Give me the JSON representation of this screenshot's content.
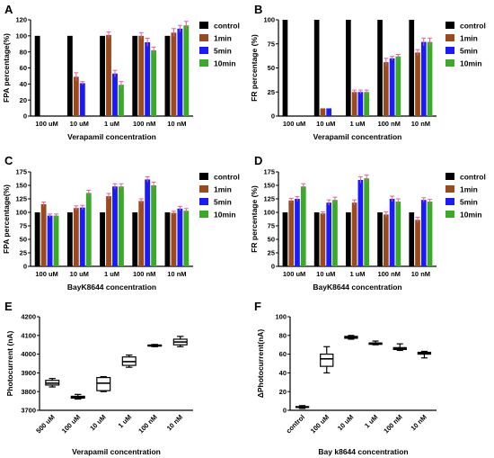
{
  "colors": {
    "control": "#000000",
    "1min": "#9a4a1c",
    "5min": "#1a1aff",
    "10min": "#3aaa28",
    "error": "#e060a0"
  },
  "chart_data": [
    {
      "panel": "A",
      "type": "bar",
      "categories": [
        "100 uM",
        "10 uM",
        "1 uM",
        "100 nM",
        "10 nM"
      ],
      "series": [
        {
          "name": "control",
          "values": [
            100,
            100,
            100,
            100,
            100
          ],
          "err": [
            0,
            0,
            0,
            0,
            0
          ]
        },
        {
          "name": "1min",
          "values": [
            0,
            49,
            101,
            100,
            104
          ],
          "err": [
            0,
            5,
            4,
            4,
            5
          ]
        },
        {
          "name": "5min",
          "values": [
            0,
            41,
            53,
            92,
            109
          ],
          "err": [
            0,
            2,
            4,
            5,
            4
          ]
        },
        {
          "name": "10min",
          "values": [
            0,
            0,
            39,
            82,
            113
          ],
          "err": [
            0,
            0,
            4,
            4,
            5
          ]
        }
      ],
      "xlabel": "Verapamil concentration",
      "ylabel": "FPA percentage(%)",
      "ylim": [
        0,
        120
      ],
      "yticks": [
        0,
        20,
        40,
        60,
        80,
        100,
        120
      ],
      "legend": "right"
    },
    {
      "panel": "B",
      "type": "bar",
      "categories": [
        "100 uM",
        "10 uM",
        "1 uM",
        "100 nM",
        "10 nM"
      ],
      "series": [
        {
          "name": "control",
          "values": [
            100,
            100,
            100,
            100,
            100
          ],
          "err": [
            0,
            0,
            0,
            0,
            0
          ]
        },
        {
          "name": "1min",
          "values": [
            0,
            8,
            25,
            56,
            66
          ],
          "err": [
            0,
            0,
            2,
            4,
            3
          ]
        },
        {
          "name": "5min",
          "values": [
            0,
            8,
            25,
            60,
            77
          ],
          "err": [
            0,
            0,
            2,
            2,
            4
          ]
        },
        {
          "name": "10min",
          "values": [
            0,
            0,
            25,
            62,
            77
          ],
          "err": [
            0,
            0,
            2,
            2,
            4
          ]
        }
      ],
      "xlabel": "Verapamil concentration",
      "ylabel": "FR percentage (%)",
      "ylim": [
        0,
        100
      ],
      "yticks": [
        0,
        25,
        50,
        75,
        100
      ],
      "legend": "right"
    },
    {
      "panel": "C",
      "type": "bar",
      "categories": [
        "100 uM",
        "10 uM",
        "1 uM",
        "100 nM",
        "10 nM"
      ],
      "series": [
        {
          "name": "control",
          "values": [
            100,
            100,
            100,
            100,
            100
          ],
          "err": [
            0,
            0,
            0,
            0,
            0
          ]
        },
        {
          "name": "1min",
          "values": [
            115,
            108,
            130,
            121,
            99
          ],
          "err": [
            4,
            4,
            5,
            4,
            3
          ]
        },
        {
          "name": "5min",
          "values": [
            94,
            109,
            148,
            161,
            107
          ],
          "err": [
            3,
            4,
            5,
            5,
            4
          ]
        },
        {
          "name": "10min",
          "values": [
            94,
            136,
            148,
            150,
            103
          ],
          "err": [
            3,
            5,
            5,
            6,
            4
          ]
        }
      ],
      "xlabel": "BayK8644 concentration",
      "ylabel": "FPA percentage(%)",
      "ylim": [
        0,
        175
      ],
      "yticks": [
        0,
        25,
        50,
        75,
        100,
        125,
        150,
        175
      ],
      "legend": "right"
    },
    {
      "panel": "D",
      "type": "bar",
      "categories": [
        "100 uM",
        "10 uM",
        "1 uM",
        "100 nM",
        "10 nM"
      ],
      "series": [
        {
          "name": "control",
          "values": [
            100,
            100,
            100,
            100,
            100
          ],
          "err": [
            0,
            0,
            0,
            0,
            0
          ]
        },
        {
          "name": "1min",
          "values": [
            122,
            98,
            118,
            96,
            86
          ],
          "err": [
            4,
            3,
            5,
            5,
            5
          ]
        },
        {
          "name": "5min",
          "values": [
            125,
            118,
            160,
            125,
            123
          ],
          "err": [
            4,
            5,
            6,
            5,
            4
          ]
        },
        {
          "name": "10min",
          "values": [
            148,
            123,
            163,
            120,
            120
          ],
          "err": [
            5,
            5,
            6,
            5,
            4
          ]
        }
      ],
      "xlabel": "BayK8644 concentration",
      "ylabel": "FR percentage (%)",
      "ylim": [
        0,
        175
      ],
      "yticks": [
        0,
        25,
        50,
        75,
        100,
        125,
        150,
        175
      ],
      "legend": "right"
    },
    {
      "panel": "E",
      "type": "box",
      "categories": [
        "500 uM",
        "100 uM",
        "10 uM",
        "1 uM",
        "100 nM",
        "10 nM"
      ],
      "boxes": [
        {
          "min": 3825,
          "q1": 3835,
          "median": 3845,
          "q3": 3860,
          "max": 3870
        },
        {
          "min": 3760,
          "q1": 3765,
          "median": 3770,
          "q3": 3775,
          "max": 3785
        },
        {
          "min": 3800,
          "q1": 3805,
          "median": 3845,
          "q3": 3875,
          "max": 3880
        },
        {
          "min": 3930,
          "q1": 3940,
          "median": 3960,
          "q3": 3985,
          "max": 3995
        },
        {
          "min": 4040,
          "q1": 4043,
          "median": 4046,
          "q3": 4049,
          "max": 4052
        },
        {
          "min": 4040,
          "q1": 4050,
          "median": 4065,
          "q3": 4080,
          "max": 4095
        }
      ],
      "xlabel": "Verapamil concentration",
      "ylabel": "Photocurrent (nA)",
      "ylim": [
        3700,
        4200
      ],
      "yticks": [
        3700,
        3800,
        3900,
        4000,
        4100,
        4200
      ]
    },
    {
      "panel": "F",
      "type": "box",
      "categories": [
        "control",
        "100 uM",
        "10 uM",
        "1 uM",
        "100 nM",
        "10 nM"
      ],
      "boxes": [
        {
          "min": 2,
          "q1": 3,
          "median": 3.5,
          "q3": 4,
          "max": 5
        },
        {
          "min": 40,
          "q1": 47,
          "median": 55,
          "q3": 60,
          "max": 68
        },
        {
          "min": 76,
          "q1": 77,
          "median": 78,
          "q3": 79,
          "max": 80
        },
        {
          "min": 70,
          "q1": 70.5,
          "median": 71,
          "q3": 72,
          "max": 74
        },
        {
          "min": 64,
          "q1": 65,
          "median": 66,
          "q3": 67,
          "max": 71
        },
        {
          "min": 56,
          "q1": 60,
          "median": 61,
          "q3": 62,
          "max": 63
        }
      ],
      "xlabel": "Bay k8644 concentration",
      "ylabel": "ΔPhotocurrent(nA)",
      "ylim": [
        0,
        100
      ],
      "yticks": [
        0,
        20,
        40,
        60,
        80,
        100
      ]
    }
  ]
}
